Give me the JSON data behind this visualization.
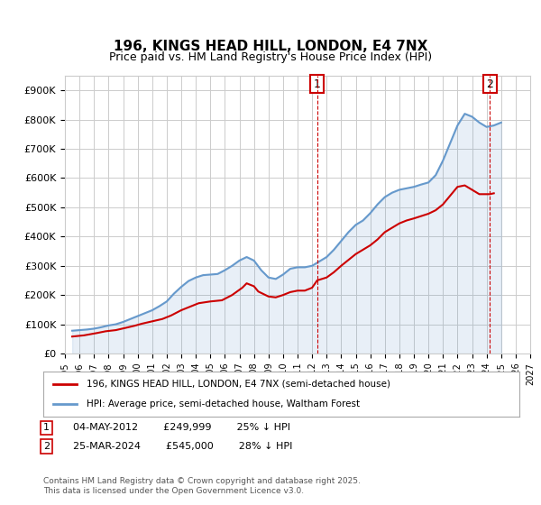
{
  "title": "196, KINGS HEAD HILL, LONDON, E4 7NX",
  "subtitle": "Price paid vs. HM Land Registry's House Price Index (HPI)",
  "ylabel_ticks": [
    "£0",
    "£100K",
    "£200K",
    "£300K",
    "£400K",
    "£500K",
    "£600K",
    "£700K",
    "£800K",
    "£900K"
  ],
  "ylim": [
    0,
    950000
  ],
  "xlim_years": [
    1995,
    2027
  ],
  "background_color": "#ffffff",
  "grid_color": "#cccccc",
  "hpi_color": "#6699cc",
  "price_color": "#cc0000",
  "vline_color": "#cc0000",
  "annotation1": {
    "x_year": 2012.35,
    "label": "1"
  },
  "annotation2": {
    "x_year": 2024.23,
    "label": "2"
  },
  "legend_entries": [
    "196, KINGS HEAD HILL, LONDON, E4 7NX (semi-detached house)",
    "HPI: Average price, semi-detached house, Waltham Forest"
  ],
  "note_line1": "04-MAY-2012        £249,999        25% ↓ HPI",
  "note_line2": "25-MAR-2024        £545,000        28% ↓ HPI",
  "footnote": "Contains HM Land Registry data © Crown copyright and database right 2025.\nThis data is licensed under the Open Government Licence v3.0.",
  "hpi_data_x": [
    1995.5,
    1996.0,
    1996.5,
    1997.0,
    1997.5,
    1998.0,
    1998.5,
    1999.0,
    1999.5,
    2000.0,
    2000.5,
    2001.0,
    2001.5,
    2002.0,
    2002.5,
    2003.0,
    2003.5,
    2004.0,
    2004.5,
    2005.0,
    2005.5,
    2006.0,
    2006.5,
    2007.0,
    2007.5,
    2008.0,
    2008.5,
    2009.0,
    2009.5,
    2010.0,
    2010.5,
    2011.0,
    2011.5,
    2012.0,
    2012.5,
    2013.0,
    2013.5,
    2014.0,
    2014.5,
    2015.0,
    2015.5,
    2016.0,
    2016.5,
    2017.0,
    2017.5,
    2018.0,
    2018.5,
    2019.0,
    2019.5,
    2020.0,
    2020.5,
    2021.0,
    2021.5,
    2022.0,
    2022.5,
    2023.0,
    2023.5,
    2024.0,
    2024.5,
    2025.0
  ],
  "hpi_data_y": [
    78000,
    80000,
    82000,
    85000,
    90000,
    96000,
    100000,
    108000,
    118000,
    128000,
    138000,
    148000,
    162000,
    178000,
    205000,
    228000,
    248000,
    260000,
    268000,
    270000,
    272000,
    285000,
    300000,
    318000,
    330000,
    318000,
    285000,
    260000,
    255000,
    270000,
    290000,
    295000,
    295000,
    300000,
    315000,
    330000,
    355000,
    385000,
    415000,
    440000,
    455000,
    480000,
    510000,
    535000,
    550000,
    560000,
    565000,
    570000,
    578000,
    585000,
    610000,
    660000,
    720000,
    780000,
    820000,
    810000,
    790000,
    775000,
    780000,
    790000
  ],
  "price_data_x": [
    1995.5,
    1996.3,
    1997.2,
    1997.8,
    1998.5,
    1999.2,
    1999.8,
    2000.3,
    2001.0,
    2001.7,
    2002.3,
    2003.0,
    2003.7,
    2004.2,
    2005.0,
    2005.8,
    2006.5,
    2007.2,
    2007.5,
    2008.0,
    2008.3,
    2009.0,
    2009.5,
    2010.0,
    2010.5,
    2011.0,
    2011.5,
    2012.0,
    2012.35,
    2013.0,
    2013.5,
    2014.0,
    2014.5,
    2015.0,
    2015.5,
    2016.0,
    2016.5,
    2017.0,
    2017.5,
    2018.0,
    2018.5,
    2019.0,
    2019.5,
    2020.0,
    2020.5,
    2021.0,
    2021.5,
    2022.0,
    2022.5,
    2023.0,
    2023.5,
    2024.23,
    2024.5
  ],
  "price_data_y": [
    58000,
    62000,
    70000,
    76000,
    80000,
    88000,
    95000,
    102000,
    110000,
    118000,
    130000,
    148000,
    162000,
    172000,
    178000,
    182000,
    200000,
    225000,
    240000,
    230000,
    212000,
    195000,
    192000,
    200000,
    210000,
    215000,
    215000,
    225000,
    249999,
    260000,
    278000,
    300000,
    320000,
    340000,
    355000,
    370000,
    390000,
    415000,
    430000,
    445000,
    455000,
    462000,
    470000,
    478000,
    490000,
    510000,
    540000,
    570000,
    575000,
    560000,
    545000,
    545000,
    548000
  ]
}
